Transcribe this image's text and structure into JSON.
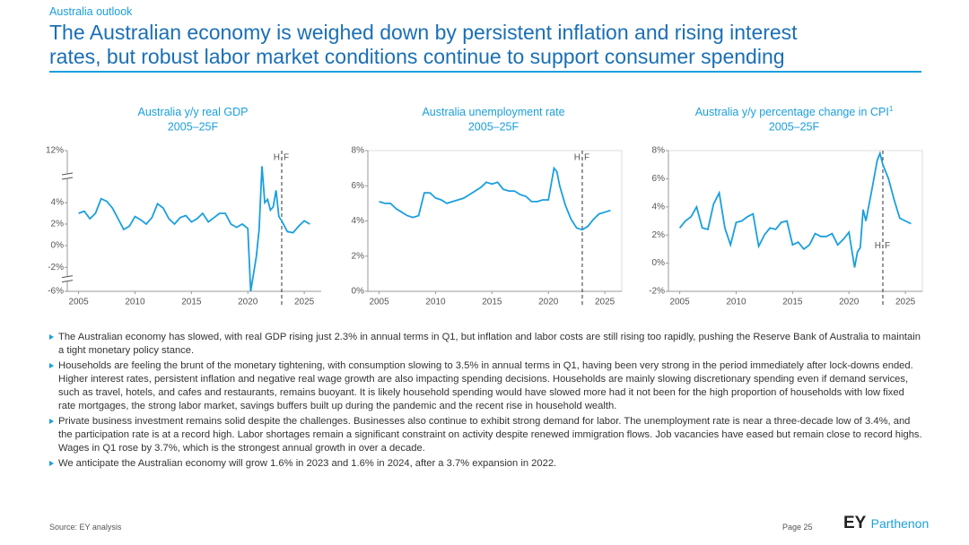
{
  "header": {
    "section": "Australia outlook",
    "title_lines": [
      "The Australian economy is weighed down by persistent inflation and rising interest",
      "rates, but robust labor market conditions continue to support consumer spending"
    ]
  },
  "chart_data": [
    {
      "type": "line",
      "title": "Australia y/y real GDP",
      "subtitle": "2005–25F",
      "color": "#1a9fde",
      "axis_break": true,
      "x": [
        2005,
        2005.5,
        2006,
        2006.5,
        2007,
        2007.5,
        2008,
        2008.5,
        2009,
        2009.5,
        2010,
        2010.5,
        2011,
        2011.5,
        2012,
        2012.5,
        2013,
        2013.5,
        2014,
        2014.5,
        2015,
        2015.5,
        2016,
        2016.5,
        2017,
        2017.5,
        2018,
        2018.5,
        2019,
        2019.5,
        2020,
        2020.25,
        2020.75,
        2021,
        2021.25,
        2021.5,
        2021.75,
        2022,
        2022.25,
        2022.5,
        2022.75,
        2023,
        2023.5,
        2024,
        2024.5,
        2025,
        2025.5
      ],
      "values": [
        3.0,
        3.2,
        2.5,
        3.0,
        4.6,
        4.2,
        3.5,
        2.5,
        1.5,
        1.8,
        2.7,
        2.4,
        2.0,
        2.6,
        3.9,
        3.5,
        2.5,
        2.0,
        2.6,
        2.8,
        2.2,
        2.5,
        3.0,
        2.2,
        2.6,
        3.0,
        3.0,
        2.0,
        1.7,
        2.0,
        1.6,
        -6.0,
        -1.0,
        1.5,
        9.6,
        4.0,
        4.5,
        3.3,
        3.6,
        5.9,
        2.7,
        2.3,
        1.3,
        1.2,
        1.8,
        2.3,
        2.0
      ],
      "xlim": [
        2004,
        2026.5
      ],
      "xticks": [
        2005,
        2010,
        2015,
        2020,
        2025
      ],
      "ylim": [
        -6,
        12
      ],
      "yticks": [
        {
          "value": -6,
          "label": "-6%"
        },
        {
          "value": -2,
          "label": "-2%"
        },
        {
          "value": 0,
          "label": "0%"
        },
        {
          "value": 2,
          "label": "2%"
        },
        {
          "value": 4,
          "label": "4%"
        },
        {
          "value": 12,
          "label": "12%"
        }
      ],
      "forecast_start": 2023,
      "forecast_labels": [
        "H",
        "F"
      ]
    },
    {
      "type": "line",
      "title": "Australia unemployment rate",
      "subtitle": "2005–25F",
      "color": "#1a9fde",
      "x": [
        2005,
        2005.5,
        2006,
        2006.5,
        2007,
        2007.5,
        2008,
        2008.5,
        2009,
        2009.5,
        2010,
        2010.5,
        2011,
        2011.5,
        2012,
        2012.5,
        2013,
        2013.5,
        2014,
        2014.5,
        2015,
        2015.5,
        2016,
        2016.5,
        2017,
        2017.5,
        2018,
        2018.5,
        2019,
        2019.5,
        2020,
        2020.5,
        2020.75,
        2021,
        2021.5,
        2022,
        2022.5,
        2023,
        2023.5,
        2024,
        2024.5,
        2025,
        2025.5
      ],
      "values": [
        5.1,
        5.0,
        5.0,
        4.7,
        4.5,
        4.3,
        4.2,
        4.3,
        5.6,
        5.6,
        5.3,
        5.2,
        5.0,
        5.1,
        5.2,
        5.3,
        5.5,
        5.7,
        5.9,
        6.2,
        6.1,
        6.2,
        5.8,
        5.7,
        5.7,
        5.5,
        5.4,
        5.1,
        5.1,
        5.2,
        5.2,
        7.0,
        6.8,
        6.0,
        4.9,
        4.1,
        3.6,
        3.5,
        3.7,
        4.1,
        4.4,
        4.5,
        4.6
      ],
      "xlim": [
        2004,
        2026.5
      ],
      "xticks": [
        2005,
        2010,
        2015,
        2020,
        2025
      ],
      "ylim": [
        0,
        8
      ],
      "yticks": [
        {
          "value": 0,
          "label": "0%"
        },
        {
          "value": 2,
          "label": "2%"
        },
        {
          "value": 4,
          "label": "4%"
        },
        {
          "value": 6,
          "label": "6%"
        },
        {
          "value": 8,
          "label": "8%"
        }
      ],
      "forecast_start": 2023,
      "forecast_labels": [
        "H",
        "F"
      ]
    },
    {
      "type": "line",
      "title": "Australia y/y percentage change in CPI",
      "title_note": "1",
      "subtitle": "2005–25F",
      "color": "#1a9fde",
      "x": [
        2005,
        2005.5,
        2006,
        2006.5,
        2007,
        2007.5,
        2008,
        2008.5,
        2009,
        2009.5,
        2010,
        2010.5,
        2011,
        2011.5,
        2012,
        2012.5,
        2013,
        2013.5,
        2014,
        2014.5,
        2015,
        2015.5,
        2016,
        2016.5,
        2017,
        2017.5,
        2018,
        2018.5,
        2019,
        2019.5,
        2020,
        2020.5,
        2020.75,
        2021,
        2021.25,
        2021.5,
        2022,
        2022.5,
        2022.75,
        2023,
        2023.5,
        2024,
        2024.5,
        2025,
        2025.5
      ],
      "values": [
        2.5,
        3.0,
        3.3,
        4.0,
        2.5,
        2.4,
        4.2,
        5.0,
        2.5,
        1.3,
        2.9,
        3.0,
        3.3,
        3.5,
        1.2,
        2.0,
        2.5,
        2.4,
        2.9,
        3.0,
        1.3,
        1.5,
        1.0,
        1.3,
        2.1,
        1.9,
        1.9,
        2.1,
        1.3,
        1.7,
        2.2,
        -0.3,
        0.8,
        1.1,
        3.8,
        3.0,
        5.1,
        7.3,
        7.8,
        7.0,
        6.0,
        4.5,
        3.2,
        3.0,
        2.8
      ],
      "xlim": [
        2004,
        2026.5
      ],
      "xticks": [
        2005,
        2010,
        2015,
        2020,
        2025
      ],
      "ylim": [
        -2,
        8
      ],
      "yticks": [
        {
          "value": -2,
          "label": "-2%"
        },
        {
          "value": 0,
          "label": "0%"
        },
        {
          "value": 2,
          "label": "2%"
        },
        {
          "value": 4,
          "label": "4%"
        },
        {
          "value": 6,
          "label": "6%"
        },
        {
          "value": 8,
          "label": "8%"
        }
      ],
      "forecast_start": 2023,
      "forecast_labels": [
        "H",
        "F"
      ]
    }
  ],
  "bullets": [
    "The Australian economy has slowed, with real GDP rising just 2.3% in annual terms in Q1, but inflation and labor costs are still rising too rapidly, pushing the Reserve Bank of Australia to maintain a tight monetary policy stance.",
    "Households are feeling the brunt of the monetary tightening, with consumption slowing to 3.5% in annual terms in Q1, having been very strong in the period immediately after lock-downs ended. Higher interest rates, persistent inflation and negative real wage growth are also impacting spending decisions. Households are mainly slowing discretionary spending even if demand services, such as travel, hotels, and cafes and restaurants, remains buoyant. It is likely household spending would have slowed more had it not been for the high proportion of households with low fixed rate mortgages, the strong labor market, savings buffers built up during the pandemic and the recent rise in household wealth.",
    "Private business investment remains solid despite the challenges. Businesses also continue to exhibit strong demand for labor. The unemployment rate is near a three-decade low of 3.4%, and the participation rate is at a record high. Labor shortages remain a significant constraint on activity despite renewed immigration flows. Job vacancies have eased but remain close to record highs. Wages in Q1 rose by 3.7%, which is the strongest annual growth in over a decade.",
    "We anticipate the Australian economy will grow 1.6% in 2023 and 1.6% in 2024, after a 3.7% expansion in 2022."
  ],
  "footer": {
    "source": "Source: EY analysis",
    "page": "Page 25",
    "logo": "EY",
    "logo_sub": "Parthenon"
  }
}
